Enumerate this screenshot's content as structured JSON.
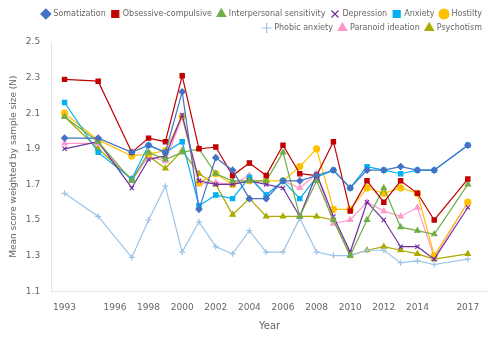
{
  "chart_data": {
    "type": "line",
    "x": [
      1993,
      1995,
      1997,
      1998,
      1999,
      2000,
      2001,
      2002,
      2003,
      2004,
      2005,
      2006,
      2007,
      2008,
      2009,
      2010,
      2011,
      2012,
      2013,
      2014,
      2015,
      2017
    ],
    "series": [
      {
        "name": "Somatization",
        "color": "#4472C4",
        "marker": "diamond",
        "values": [
          1.96,
          1.96,
          1.88,
          1.92,
          1.88,
          2.22,
          1.56,
          1.85,
          1.78,
          1.62,
          1.62,
          1.72,
          1.72,
          1.75,
          1.78,
          1.68,
          1.78,
          1.78,
          1.8,
          1.78,
          1.78,
          1.92
        ]
      },
      {
        "name": "Obsessive-compulsive",
        "color": "#C00000",
        "marker": "square",
        "values": [
          2.29,
          2.28,
          1.88,
          1.96,
          1.94,
          2.31,
          1.9,
          1.91,
          1.75,
          1.82,
          1.75,
          1.92,
          1.76,
          1.75,
          1.94,
          1.55,
          1.72,
          1.6,
          1.72,
          1.65,
          1.5,
          1.73
        ]
      },
      {
        "name": "Interpersonal sensitivity",
        "color": "#70AD47",
        "marker": "triangle",
        "values": [
          2.08,
          1.94,
          1.72,
          1.88,
          1.84,
          1.88,
          1.9,
          1.76,
          1.72,
          1.72,
          1.72,
          1.88,
          1.52,
          1.72,
          1.5,
          1.3,
          1.5,
          1.68,
          1.46,
          1.44,
          1.42,
          1.7
        ]
      },
      {
        "name": "Depression",
        "color": "#7030A0",
        "marker": "x",
        "values": [
          1.9,
          1.94,
          1.68,
          1.84,
          1.86,
          2.09,
          1.72,
          1.7,
          1.7,
          1.72,
          1.7,
          1.68,
          1.52,
          1.76,
          1.52,
          1.32,
          1.6,
          1.5,
          1.35,
          1.35,
          1.28,
          1.57
        ]
      },
      {
        "name": "Anxiety",
        "color": "#00B0F0",
        "marker": "square",
        "values": [
          2.16,
          1.88,
          1.73,
          1.92,
          1.88,
          1.94,
          1.58,
          1.64,
          1.62,
          1.74,
          1.64,
          1.72,
          1.62,
          1.74,
          1.78,
          1.68,
          1.8,
          1.78,
          1.76,
          1.78,
          1.78,
          1.92
        ]
      },
      {
        "name": "Hostilty",
        "color": "#FFC000",
        "marker": "circle",
        "values": [
          2.1,
          1.95,
          1.86,
          1.87,
          1.89,
          2.08,
          1.71,
          1.76,
          1.7,
          1.72,
          1.72,
          1.72,
          1.8,
          1.9,
          1.56,
          1.56,
          1.68,
          1.65,
          1.68,
          1.65,
          1.3,
          1.6
        ]
      },
      {
        "name": "Phobic anxiety",
        "color": "#9DC3E6",
        "marker": "plus",
        "values": [
          1.65,
          1.52,
          1.29,
          1.5,
          1.69,
          1.32,
          1.49,
          1.35,
          1.31,
          1.44,
          1.32,
          1.32,
          1.51,
          1.32,
          1.3,
          1.3,
          1.33,
          1.33,
          1.26,
          1.27,
          1.25,
          1.28
        ]
      },
      {
        "name": "Paranoid ideation",
        "color": "#FF99CC",
        "marker": "triangle",
        "values": [
          1.93,
          1.93,
          1.72,
          1.86,
          1.83,
          2.08,
          1.7,
          1.71,
          1.7,
          1.75,
          1.64,
          1.72,
          1.68,
          1.76,
          1.48,
          1.5,
          1.6,
          1.55,
          1.52,
          1.57,
          1.29,
          1.6
        ]
      },
      {
        "name": "Psychotism",
        "color": "#AAAA00",
        "marker": "triangle",
        "values": [
          2.08,
          1.9,
          1.73,
          1.86,
          1.79,
          1.89,
          1.76,
          1.7,
          1.53,
          1.62,
          1.52,
          1.52,
          1.52,
          1.52,
          1.5,
          1.3,
          1.33,
          1.35,
          1.33,
          1.31,
          1.28,
          1.31
        ]
      }
    ],
    "xlabel": "Year",
    "ylabel": "Mean score weighted by sample size (N)",
    "xlim": [
      1992.2,
      2018.2
    ],
    "xticks": [
      1993,
      1996,
      1998,
      2000,
      2002,
      2004,
      2006,
      2008,
      2010,
      2012,
      2014,
      2017
    ],
    "ylim": [
      1.1,
      2.5
    ],
    "yticks": [
      1.1,
      1.3,
      1.5,
      1.7,
      1.9,
      2.1,
      2.3,
      2.5
    ],
    "grid": false,
    "legend": "upper right"
  }
}
